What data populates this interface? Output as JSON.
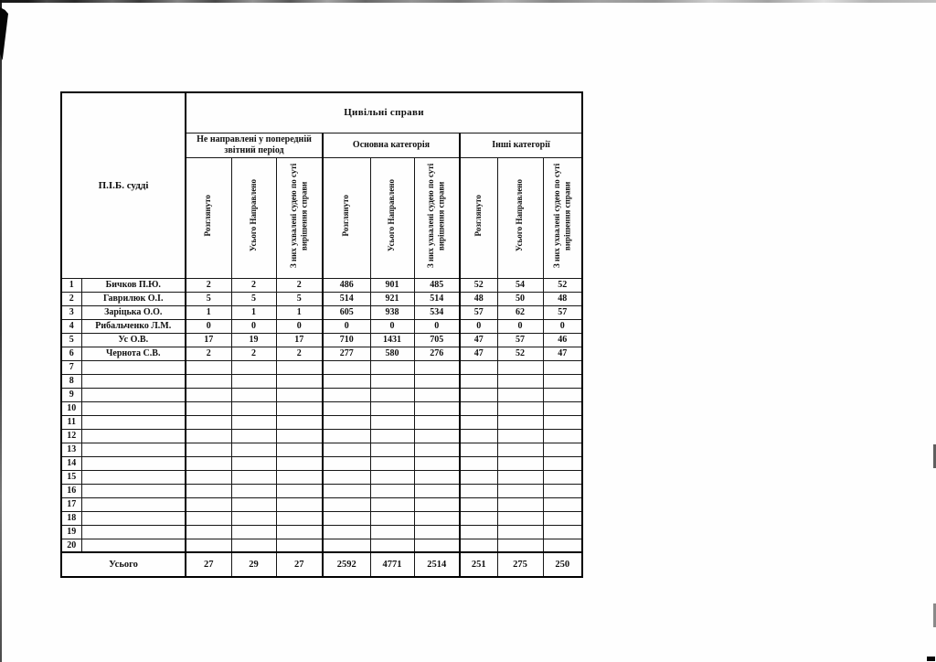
{
  "table": {
    "title": "Цивільні справи",
    "judge_column_header": "П.І.Б. судді",
    "groups": [
      "Не направлені у попередній звітний період",
      "Основна категорія",
      "Інші категорії"
    ],
    "subcolumns": [
      "Розглянуто",
      "Усього Направлено",
      "З них ухвалені судею по суті вирішення справи"
    ],
    "rows": [
      {
        "num": "1",
        "name": "Бичков П.Ю.",
        "values": [
          "2",
          "2",
          "2",
          "486",
          "901",
          "485",
          "52",
          "54",
          "52"
        ]
      },
      {
        "num": "2",
        "name": "Гаврилюк О.І.",
        "values": [
          "5",
          "5",
          "5",
          "514",
          "921",
          "514",
          "48",
          "50",
          "48"
        ]
      },
      {
        "num": "3",
        "name": "Заріцька О.О.",
        "values": [
          "1",
          "1",
          "1",
          "605",
          "938",
          "534",
          "57",
          "62",
          "57"
        ]
      },
      {
        "num": "4",
        "name": "Рибальченко Л.М.",
        "values": [
          "0",
          "0",
          "0",
          "0",
          "0",
          "0",
          "0",
          "0",
          "0"
        ]
      },
      {
        "num": "5",
        "name": "Ус О.В.",
        "values": [
          "17",
          "19",
          "17",
          "710",
          "1431",
          "705",
          "47",
          "57",
          "46"
        ]
      },
      {
        "num": "6",
        "name": "Чернота С.В.",
        "values": [
          "2",
          "2",
          "2",
          "277",
          "580",
          "276",
          "47",
          "52",
          "47"
        ]
      },
      {
        "num": "7",
        "name": "",
        "values": [
          "",
          "",
          "",
          "",
          "",
          "",
          "",
          "",
          ""
        ]
      },
      {
        "num": "8",
        "name": "",
        "values": [
          "",
          "",
          "",
          "",
          "",
          "",
          "",
          "",
          ""
        ]
      },
      {
        "num": "9",
        "name": "",
        "values": [
          "",
          "",
          "",
          "",
          "",
          "",
          "",
          "",
          ""
        ]
      },
      {
        "num": "10",
        "name": "",
        "values": [
          "",
          "",
          "",
          "",
          "",
          "",
          "",
          "",
          ""
        ]
      },
      {
        "num": "11",
        "name": "",
        "values": [
          "",
          "",
          "",
          "",
          "",
          "",
          "",
          "",
          ""
        ]
      },
      {
        "num": "12",
        "name": "",
        "values": [
          "",
          "",
          "",
          "",
          "",
          "",
          "",
          "",
          ""
        ]
      },
      {
        "num": "13",
        "name": "",
        "values": [
          "",
          "",
          "",
          "",
          "",
          "",
          "",
          "",
          ""
        ]
      },
      {
        "num": "14",
        "name": "",
        "values": [
          "",
          "",
          "",
          "",
          "",
          "",
          "",
          "",
          ""
        ]
      },
      {
        "num": "15",
        "name": "",
        "values": [
          "",
          "",
          "",
          "",
          "",
          "",
          "",
          "",
          ""
        ]
      },
      {
        "num": "16",
        "name": "",
        "values": [
          "",
          "",
          "",
          "",
          "",
          "",
          "",
          "",
          ""
        ]
      },
      {
        "num": "17",
        "name": "",
        "values": [
          "",
          "",
          "",
          "",
          "",
          "",
          "",
          "",
          ""
        ]
      },
      {
        "num": "18",
        "name": "",
        "values": [
          "",
          "",
          "",
          "",
          "",
          "",
          "",
          "",
          ""
        ]
      },
      {
        "num": "19",
        "name": "",
        "values": [
          "",
          "",
          "",
          "",
          "",
          "",
          "",
          "",
          ""
        ]
      },
      {
        "num": "20",
        "name": "",
        "values": [
          "",
          "",
          "",
          "",
          "",
          "",
          "",
          "",
          ""
        ]
      }
    ],
    "totals": {
      "label": "Усього",
      "values": [
        "27",
        "29",
        "27",
        "2592",
        "4771",
        "2514",
        "251",
        "275",
        "250"
      ]
    }
  }
}
